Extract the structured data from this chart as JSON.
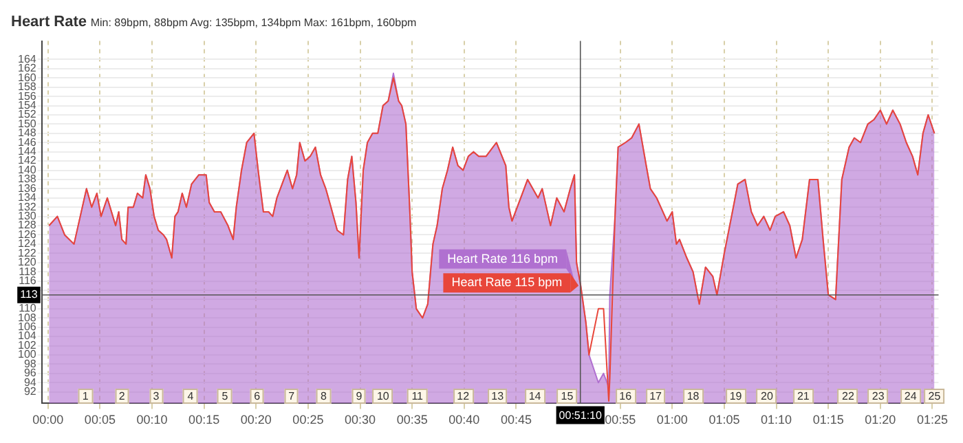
{
  "chart_data": {
    "type": "area",
    "title": "Heart Rate",
    "subtitle": "Min: 89bpm, 88bpm Avg: 135bpm, 134bpm Max: 161bpm, 160bpm",
    "series": [
      {
        "color": "#b070d0",
        "x": [
          0.1,
          0.9,
          1.6,
          2.5,
          3.1,
          3.7,
          4.2,
          4.7,
          5.1,
          5.7,
          6.1,
          6.5,
          6.8,
          7.1,
          7.5,
          7.7,
          8.2,
          8.6,
          9.1,
          9.4,
          9.8,
          10.2,
          10.6,
          11.1,
          11.4,
          11.9,
          12.2,
          12.5,
          12.9,
          13.3,
          13.8,
          14.5,
          15.2,
          15.5,
          16.0,
          16.6,
          17.3,
          17.8,
          18.1,
          18.6,
          19.1,
          19.8,
          20.2,
          20.7,
          21.2,
          21.6,
          22.0,
          22.5,
          23.0,
          23.5,
          23.9,
          24.2,
          24.7,
          25.2,
          25.7,
          26.2,
          26.7,
          27.2,
          27.8,
          28.4,
          28.8,
          29.2,
          29.6,
          29.9,
          30.3,
          30.7,
          31.2,
          31.7,
          32.2,
          32.7,
          33.2,
          33.7,
          34.0,
          34.4,
          34.8,
          35.0,
          35.4,
          36.0,
          36.5,
          37.0,
          37.4,
          37.9,
          38.4,
          38.9,
          39.4,
          39.9,
          40.4,
          40.9,
          41.4,
          42.1,
          43.1,
          44.0,
          44.3,
          44.6,
          46.1,
          47.1,
          47.5,
          48.0,
          48.3,
          48.9,
          49.6,
          50.2,
          50.6,
          50.8,
          51.2,
          51.7,
          52.0,
          52.9,
          53.4,
          53.9,
          54.0,
          54.5,
          54.8,
          55.5,
          56.1,
          56.8,
          57.5,
          57.9,
          58.5,
          58.9,
          59.5,
          60.0,
          60.4,
          60.7,
          61.4,
          62.0,
          62.6,
          63.2,
          63.9,
          64.3,
          65.0,
          65.7,
          66.3,
          67.0,
          67.6,
          68.2,
          68.8,
          69.4,
          69.9,
          70.7,
          71.3,
          71.9,
          72.5,
          73.2,
          74.0,
          74.5,
          75.0,
          75.7,
          76.3,
          77.0,
          77.5,
          78.1,
          78.8,
          79.4,
          80.0,
          80.6,
          81.2,
          81.9,
          82.5,
          83.1,
          83.6,
          84.1,
          84.6,
          85.2
        ],
        "values": [
          128,
          130,
          126,
          124,
          130,
          136,
          132,
          135,
          130,
          134,
          131,
          128,
          131,
          125,
          124,
          132,
          132,
          135,
          134,
          139,
          136,
          130,
          127,
          126,
          125,
          121,
          130,
          131,
          135,
          132,
          137,
          139,
          139,
          133,
          131,
          131,
          128,
          125,
          132,
          140,
          146,
          148,
          140,
          131,
          131,
          130,
          134,
          137,
          140,
          136,
          139,
          146,
          142,
          143,
          145,
          139,
          136,
          132,
          127,
          126,
          138,
          143,
          133,
          121,
          140,
          146,
          148,
          148,
          154,
          155,
          161,
          155,
          154,
          150,
          130,
          118,
          110,
          108,
          111,
          124,
          128,
          136,
          140,
          145,
          141,
          140,
          143,
          144,
          143,
          143,
          146,
          141,
          132,
          129,
          138,
          134,
          136,
          131,
          128,
          134,
          131,
          136,
          139,
          120,
          115,
          107,
          100,
          94,
          96,
          93,
          113,
          130,
          145,
          146,
          147,
          150,
          141,
          136,
          134,
          132,
          129,
          131,
          124,
          125,
          121,
          118,
          111,
          119,
          117,
          113,
          122,
          130,
          137,
          138,
          131,
          128,
          130,
          127,
          130,
          131,
          128,
          121,
          125,
          138,
          138,
          125,
          113,
          112,
          138,
          145,
          147,
          146,
          150,
          151,
          153,
          150,
          153,
          150,
          146,
          143,
          139,
          148,
          152,
          148
        ]
      },
      {
        "type": "line",
        "color": "#e8463a",
        "x": [
          0.1,
          0.9,
          1.6,
          2.5,
          3.1,
          3.7,
          4.2,
          4.7,
          5.1,
          5.7,
          6.1,
          6.5,
          6.8,
          7.1,
          7.5,
          7.7,
          8.2,
          8.6,
          9.1,
          9.4,
          9.8,
          10.2,
          10.6,
          11.1,
          11.4,
          11.9,
          12.2,
          12.5,
          12.9,
          13.3,
          13.8,
          14.5,
          15.2,
          15.5,
          16.0,
          16.6,
          17.3,
          17.8,
          18.1,
          18.6,
          19.1,
          19.8,
          20.2,
          20.7,
          21.2,
          21.6,
          22.0,
          22.5,
          23.0,
          23.5,
          23.9,
          24.2,
          24.7,
          25.2,
          25.7,
          26.2,
          26.7,
          27.2,
          27.8,
          28.4,
          28.8,
          29.2,
          29.6,
          29.9,
          30.3,
          30.7,
          31.2,
          31.7,
          32.2,
          32.7,
          33.2,
          33.7,
          34.0,
          34.4,
          34.8,
          35.0,
          35.4,
          36.0,
          36.5,
          37.0,
          37.4,
          37.9,
          38.4,
          38.9,
          39.4,
          39.9,
          40.4,
          40.9,
          41.4,
          42.1,
          43.1,
          44.0,
          44.3,
          44.6,
          46.1,
          47.1,
          47.5,
          48.0,
          48.3,
          48.9,
          49.6,
          50.2,
          50.6,
          50.8,
          51.2,
          51.7,
          52.0,
          52.9,
          53.4,
          53.9,
          54.0,
          54.5,
          54.8,
          55.5,
          56.1,
          56.8,
          57.5,
          57.9,
          58.5,
          58.9,
          59.5,
          60.0,
          60.4,
          60.7,
          61.4,
          62.0,
          62.6,
          63.2,
          63.9,
          64.3,
          65.0,
          65.7,
          66.3,
          67.0,
          67.6,
          68.2,
          68.8,
          69.4,
          69.9,
          70.7,
          71.3,
          71.9,
          72.5,
          73.2,
          74.0,
          74.5,
          75.0,
          75.7,
          76.3,
          77.0,
          77.5,
          78.1,
          78.8,
          79.4,
          80.0,
          80.6,
          81.2,
          81.9,
          82.5,
          83.1,
          83.6,
          84.1,
          84.6,
          85.2
        ],
        "values": [
          128,
          130,
          126,
          124,
          130,
          136,
          132,
          135,
          130,
          134,
          131,
          128,
          131,
          125,
          124,
          132,
          132,
          135,
          134,
          139,
          136,
          130,
          127,
          126,
          125,
          121,
          130,
          131,
          135,
          132,
          137,
          139,
          139,
          133,
          131,
          131,
          128,
          125,
          132,
          140,
          146,
          148,
          140,
          131,
          131,
          130,
          134,
          137,
          140,
          136,
          139,
          146,
          142,
          143,
          145,
          139,
          136,
          132,
          127,
          126,
          138,
          143,
          133,
          121,
          140,
          146,
          148,
          148,
          154,
          155,
          160,
          155,
          154,
          150,
          130,
          118,
          110,
          108,
          111,
          124,
          128,
          136,
          140,
          145,
          141,
          140,
          143,
          144,
          143,
          143,
          146,
          141,
          132,
          129,
          138,
          134,
          136,
          131,
          128,
          134,
          131,
          136,
          139,
          120,
          115,
          107,
          100,
          110,
          110,
          90,
          95,
          130,
          145,
          146,
          147,
          150,
          141,
          136,
          134,
          132,
          129,
          131,
          124,
          125,
          121,
          118,
          111,
          119,
          117,
          113,
          122,
          130,
          137,
          138,
          131,
          128,
          130,
          127,
          130,
          131,
          128,
          121,
          125,
          138,
          138,
          125,
          113,
          112,
          138,
          145,
          147,
          146,
          150,
          151,
          153,
          150,
          153,
          150,
          146,
          143,
          139,
          148,
          152,
          148
        ]
      }
    ],
    "xlim": [
      -0.6,
      85.6
    ],
    "ylim": [
      89.5,
      168
    ],
    "xticks": [
      {
        "value": 0,
        "label": "00:00"
      },
      {
        "value": 5,
        "label": "00:05"
      },
      {
        "value": 10,
        "label": "00:10"
      },
      {
        "value": 15,
        "label": "00:15"
      },
      {
        "value": 20,
        "label": "00:20"
      },
      {
        "value": 25,
        "label": "00:25"
      },
      {
        "value": 30,
        "label": "00:30"
      },
      {
        "value": 35,
        "label": "00:35"
      },
      {
        "value": 40,
        "label": "00:40"
      },
      {
        "value": 45,
        "label": "00:45"
      },
      {
        "value": 55,
        "label": "00:55"
      },
      {
        "value": 60,
        "label": "01:00"
      },
      {
        "value": 65,
        "label": "01:05"
      },
      {
        "value": 70,
        "label": "01:10"
      },
      {
        "value": 75,
        "label": "01:15"
      },
      {
        "value": 80,
        "label": "01:20"
      },
      {
        "value": 85,
        "label": "01:25"
      }
    ],
    "yticks": [
      92,
      94,
      96,
      98,
      100,
      102,
      104,
      106,
      108,
      110,
      {
        "value": 112,
        "label": null
      },
      {
        "value": 114,
        "label": null
      },
      116,
      118,
      120,
      122,
      124,
      126,
      128,
      130,
      132,
      134,
      136,
      138,
      140,
      142,
      144,
      146,
      148,
      150,
      152,
      154,
      156,
      158,
      160,
      162,
      164
    ],
    "grid": true,
    "marker": "none",
    "line_style": "solid",
    "ref_lines": [
      {
        "axis": "x",
        "value": 51.17,
        "label": "00:51:10"
      },
      {
        "axis": "y",
        "value": 113,
        "label": "113"
      }
    ],
    "annotations": [
      {
        "text": "Heart Rate 116 bpm",
        "x": 50.6,
        "y": 116
      },
      {
        "text": "Heart Rate 115 bpm",
        "x": 51.0,
        "y": 115
      },
      {
        "text": "1",
        "x": 3.6,
        "y": 91
      },
      {
        "text": "2",
        "x": 7.1,
        "y": 91
      },
      {
        "text": "3",
        "x": 10.4,
        "y": 91
      },
      {
        "text": "4",
        "x": 13.7,
        "y": 91
      },
      {
        "text": "5",
        "x": 17.0,
        "y": 91
      },
      {
        "text": "6",
        "x": 20.1,
        "y": 91
      },
      {
        "text": "7",
        "x": 23.4,
        "y": 91
      },
      {
        "text": "8",
        "x": 26.5,
        "y": 91
      },
      {
        "text": "9",
        "x": 29.9,
        "y": 91
      },
      {
        "text": "10",
        "x": 32.2,
        "y": 91
      },
      {
        "text": "11",
        "x": 35.5,
        "y": 91
      },
      {
        "text": "12",
        "x": 39.9,
        "y": 91
      },
      {
        "text": "13",
        "x": 43.2,
        "y": 91
      },
      {
        "text": "14",
        "x": 46.8,
        "y": 91
      },
      {
        "text": "15",
        "x": 49.9,
        "y": 91
      },
      {
        "text": "16",
        "x": 55.5,
        "y": 91
      },
      {
        "text": "17",
        "x": 58.4,
        "y": 91
      },
      {
        "text": "18",
        "x": 62.0,
        "y": 91
      },
      {
        "text": "19",
        "x": 66.1,
        "y": 91
      },
      {
        "text": "20",
        "x": 69.1,
        "y": 91
      },
      {
        "text": "21",
        "x": 72.6,
        "y": 91
      },
      {
        "text": "22",
        "x": 76.9,
        "y": 91
      },
      {
        "text": "23",
        "x": 79.8,
        "y": 91
      },
      {
        "text": "24",
        "x": 82.9,
        "y": 91
      },
      {
        "text": "25",
        "x": 85.2,
        "y": 91
      }
    ]
  }
}
